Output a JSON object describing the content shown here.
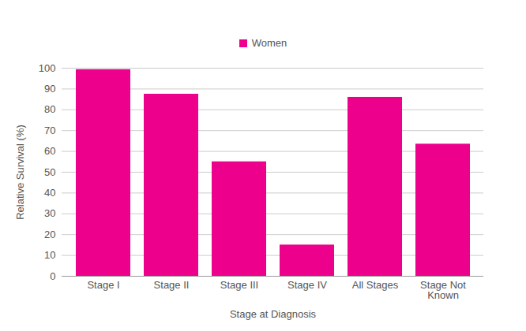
{
  "chart_data": {
    "type": "bar",
    "categories": [
      "Stage I",
      "Stage II",
      "Stage III",
      "Stage IV",
      "All Stages",
      "Stage Not Known"
    ],
    "series": [
      {
        "name": "Women",
        "color": "#ec008c",
        "values": [
          99.3,
          87.5,
          55,
          15,
          86,
          63.5
        ]
      }
    ],
    "x_label": "Stage at Diagnosis",
    "y_label": "Relative Survival (%)",
    "ylim": [
      0,
      100
    ],
    "yticks": [
      0,
      10,
      20,
      30,
      40,
      50,
      60,
      70,
      80,
      90,
      100
    ],
    "grid": true,
    "legend": "top"
  }
}
